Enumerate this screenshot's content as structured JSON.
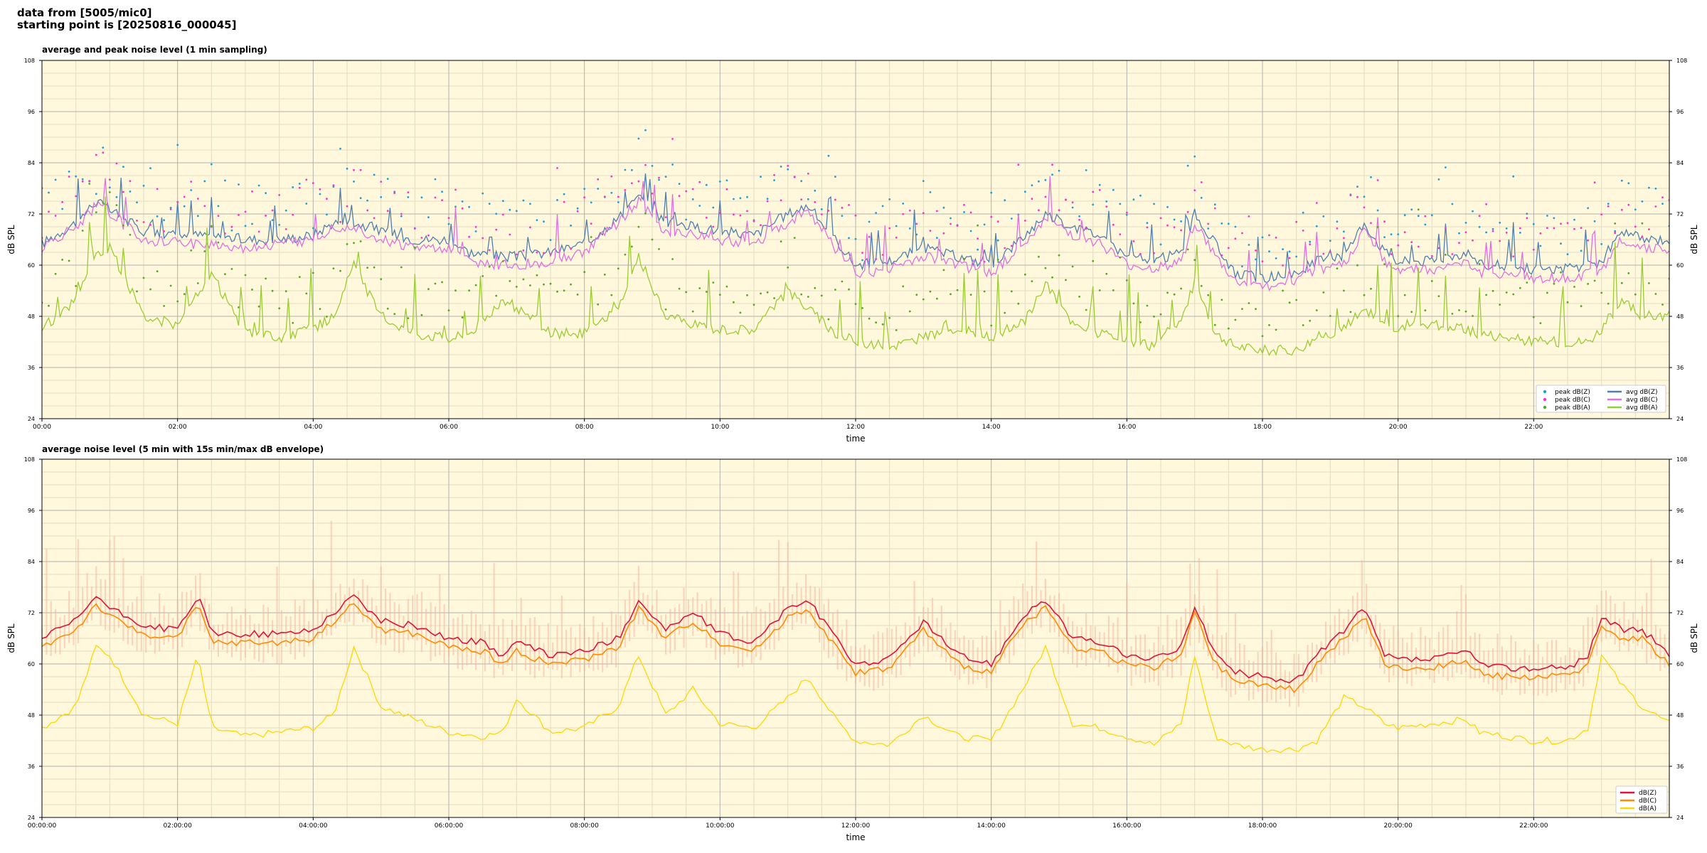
{
  "header": {
    "line1": "data from [5005/mic0]",
    "line2": "starting point is [20250816_000045]"
  },
  "colors": {
    "plot_background": "#fff8dc",
    "grid_major": "#b0b0b0",
    "grid_minor": "#e6dcc0",
    "peak_z": "#1f9fd6",
    "peak_c": "#ff33cc",
    "peak_a": "#55aa22",
    "avg_z": "#4f7fb0",
    "avg_c": "#e070e0",
    "avg_a": "#9acd32",
    "env_z": "#dc143c",
    "env_c": "#ff8c00",
    "env_a": "#ffd700",
    "envelope_fill": "#f4b8a0"
  },
  "chart_data": [
    {
      "type": "line",
      "title": "average and peak noise level (1 min sampling)",
      "xlabel": "time",
      "ylabel": "dB SPL",
      "ylabel_right": "dB SPL",
      "xlim_hours": [
        0,
        24
      ],
      "ylim": [
        24,
        108
      ],
      "yticks": [
        24,
        36,
        48,
        60,
        72,
        84,
        96,
        108
      ],
      "xticks": [
        "00:00",
        "02:00",
        "04:00",
        "06:00",
        "08:00",
        "10:00",
        "12:00",
        "14:00",
        "16:00",
        "18:00",
        "20:00",
        "22:00"
      ],
      "grid": true,
      "legend": "lower-right",
      "legend_entries": {
        "peak": [
          "peak dB(Z)",
          "peak dB(C)",
          "peak dB(A)"
        ],
        "avg": [
          "avg dB(Z)",
          "avg dB(C)",
          "avg dB(A)"
        ]
      },
      "hours": [
        0,
        0.5,
        0.8,
        1.0,
        1.5,
        2.0,
        2.5,
        3.0,
        3.5,
        4.0,
        4.3,
        4.6,
        5.0,
        5.5,
        6.0,
        6.3,
        6.8,
        7.0,
        7.5,
        8.0,
        8.5,
        8.8,
        9.2,
        9.6,
        10.0,
        10.5,
        11.0,
        11.3,
        11.7,
        12.0,
        12.5,
        13.0,
        13.5,
        14.0,
        14.5,
        14.8,
        15.2,
        15.6,
        16.0,
        16.4,
        16.8,
        17.0,
        17.3,
        17.6,
        18.0,
        18.5,
        18.8,
        19.2,
        19.5,
        19.8,
        20.0,
        20.5,
        21.0,
        21.2,
        21.6,
        22.0,
        22.5,
        22.8,
        23.0,
        23.3,
        23.6,
        24.0
      ],
      "series": [
        {
          "name": "avg dB(Z)",
          "values": [
            65,
            70,
            75,
            73,
            68,
            67,
            67,
            66,
            66,
            67,
            70,
            70,
            68,
            66,
            66,
            63,
            62,
            62,
            63,
            65,
            71,
            76,
            70,
            69,
            68,
            67,
            72,
            74,
            66,
            60,
            61,
            64,
            62,
            60,
            67,
            72,
            69,
            67,
            62,
            61,
            63,
            72,
            65,
            58,
            57,
            58,
            61,
            62,
            70,
            63,
            61,
            61,
            63,
            60,
            60,
            59,
            59,
            60,
            61,
            68,
            66,
            66
          ]
        },
        {
          "name": "avg dB(C)",
          "values": [
            64,
            69,
            74,
            72,
            66,
            65,
            65,
            64,
            65,
            66,
            69,
            69,
            66,
            64,
            64,
            61,
            60,
            60,
            61,
            63,
            70,
            75,
            68,
            67,
            66,
            65,
            70,
            73,
            64,
            58,
            59,
            62,
            60,
            58,
            65,
            71,
            67,
            65,
            60,
            59,
            61,
            70,
            62,
            56,
            55,
            56,
            59,
            60,
            68,
            61,
            59,
            59,
            61,
            58,
            58,
            57,
            57,
            58,
            59,
            66,
            64,
            64
          ]
        },
        {
          "name": "avg dB(A)",
          "values": [
            45,
            52,
            62,
            64,
            48,
            46,
            58,
            44,
            43,
            45,
            48,
            60,
            48,
            44,
            43,
            44,
            52,
            50,
            44,
            44,
            50,
            62,
            48,
            46,
            45,
            45,
            54,
            50,
            44,
            42,
            41,
            43,
            45,
            43,
            47,
            56,
            46,
            44,
            42,
            41,
            47,
            56,
            44,
            41,
            40,
            40,
            43,
            45,
            50,
            46,
            45,
            46,
            45,
            44,
            43,
            42,
            42,
            42,
            45,
            52,
            48,
            48
          ]
        }
      ]
    },
    {
      "type": "line",
      "title": "average noise level (5 min with 15s min/max dB envelope)",
      "xlabel": "time",
      "ylabel": "dB SPL",
      "ylabel_right": "dB SPL",
      "xlim_hours": [
        0,
        24
      ],
      "ylim": [
        24,
        108
      ],
      "yticks": [
        24,
        36,
        48,
        60,
        72,
        84,
        96,
        108
      ],
      "xticks": [
        "00:00:00",
        "02:00:00",
        "04:00:00",
        "06:00:00",
        "08:00:00",
        "10:00:00",
        "12:00:00",
        "14:00:00",
        "16:00:00",
        "18:00:00",
        "20:00:00",
        "22:00:00"
      ],
      "grid": true,
      "legend": "lower-right",
      "legend_entries": [
        "dB(Z)",
        "dB(C)",
        "dB(A)"
      ],
      "hours": [
        0,
        0.5,
        0.8,
        1.0,
        1.5,
        2.0,
        2.3,
        2.5,
        3.0,
        3.5,
        4.0,
        4.3,
        4.6,
        5.0,
        5.5,
        6.0,
        6.5,
        6.8,
        7.0,
        7.5,
        8.0,
        8.5,
        8.8,
        9.2,
        9.6,
        10.0,
        10.5,
        11.0,
        11.3,
        11.7,
        12.0,
        12.5,
        13.0,
        13.5,
        14.0,
        14.5,
        14.8,
        15.2,
        15.6,
        16.0,
        16.4,
        16.8,
        17.0,
        17.3,
        17.6,
        18.0,
        18.5,
        18.8,
        19.2,
        19.5,
        19.8,
        20.0,
        20.5,
        21.0,
        21.2,
        21.6,
        22.0,
        22.5,
        22.8,
        23.0,
        23.3,
        23.6,
        24.0
      ],
      "series": [
        {
          "name": "dB(Z)",
          "values": [
            66,
            70,
            76,
            73,
            69,
            68,
            76,
            67,
            67,
            67,
            68,
            72,
            76,
            70,
            69,
            66,
            65,
            62,
            65,
            62,
            63,
            66,
            75,
            68,
            72,
            67,
            65,
            73,
            75,
            66,
            60,
            61,
            70,
            62,
            60,
            72,
            75,
            66,
            65,
            62,
            61,
            64,
            74,
            62,
            58,
            57,
            56,
            62,
            68,
            73,
            62,
            61,
            61,
            63,
            60,
            59,
            59,
            59,
            62,
            71,
            68,
            68,
            62
          ]
        },
        {
          "name": "dB(C)",
          "values": [
            64,
            68,
            74,
            71,
            67,
            66,
            74,
            65,
            65,
            65,
            66,
            70,
            74,
            68,
            67,
            64,
            63,
            60,
            63,
            60,
            61,
            64,
            73,
            66,
            70,
            65,
            63,
            71,
            73,
            64,
            58,
            59,
            68,
            60,
            58,
            70,
            73,
            64,
            63,
            60,
            59,
            62,
            72,
            60,
            56,
            55,
            54,
            60,
            66,
            71,
            60,
            59,
            59,
            61,
            58,
            57,
            57,
            57,
            60,
            69,
            66,
            66,
            60
          ]
        },
        {
          "name": "dB(A)",
          "values": [
            45,
            50,
            64,
            62,
            48,
            46,
            62,
            45,
            43,
            44,
            45,
            48,
            64,
            50,
            47,
            44,
            43,
            44,
            52,
            44,
            45,
            50,
            62,
            48,
            54,
            46,
            45,
            52,
            57,
            47,
            42,
            41,
            48,
            43,
            42,
            55,
            64,
            46,
            45,
            43,
            41,
            46,
            62,
            43,
            41,
            40,
            40,
            42,
            52,
            50,
            46,
            45,
            46,
            47,
            44,
            43,
            42,
            42,
            45,
            62,
            55,
            50,
            46
          ]
        }
      ]
    }
  ]
}
